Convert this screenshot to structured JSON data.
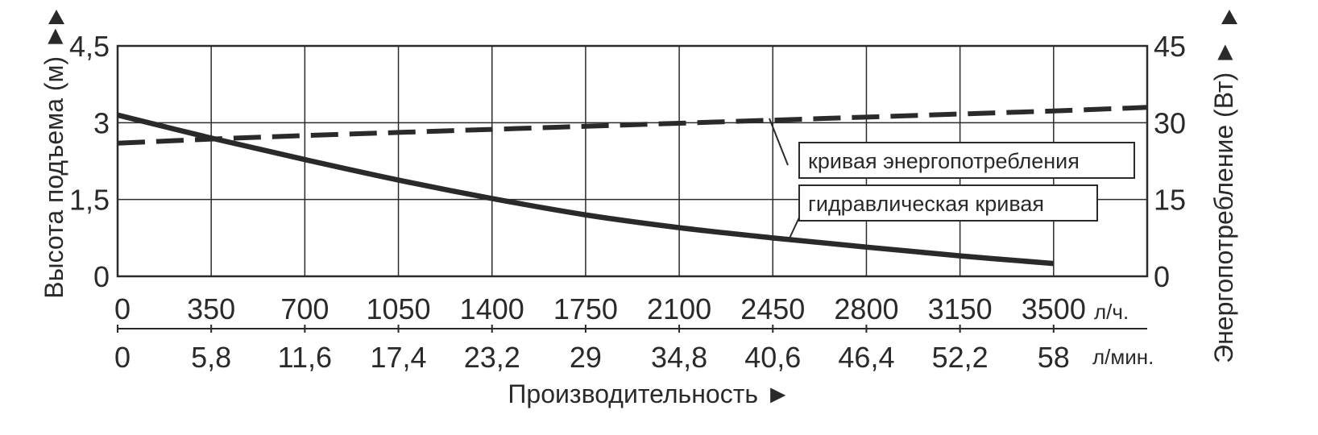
{
  "chart_data": {
    "type": "line",
    "x": [
      0,
      350,
      700,
      1050,
      1400,
      1750,
      2100,
      2450,
      2800,
      3150,
      3500
    ],
    "x_tick_labels": [
      "0",
      "350",
      "700",
      "1050",
      "1400",
      "1750",
      "2100",
      "2450",
      "2800",
      "3150",
      "3500"
    ],
    "x_unit": "л/ч.",
    "x2_tick_labels": [
      "0",
      "5,8",
      "11,6",
      "17,4",
      "23,2",
      "29",
      "34,8",
      "40,6",
      "46,4",
      "52,2",
      "58"
    ],
    "x2_unit": "л/мин.",
    "xlabel": "Производительность ►",
    "xlim": [
      0,
      3850
    ],
    "ylabel": "Высота подъема (м) ►",
    "ylim": [
      0,
      4.5
    ],
    "y_tick_labels": [
      "0",
      "1,5",
      "3",
      "4,5"
    ],
    "y_ticks": [
      0,
      1.5,
      3,
      4.5
    ],
    "y2label": "Энергопотребление (Вт) ►",
    "y2lim": [
      0,
      45
    ],
    "y2_tick_labels": [
      "0",
      "15",
      "30",
      "45"
    ],
    "y2_ticks": [
      0,
      15,
      30,
      45
    ],
    "grid": true,
    "series": [
      {
        "name": "гидравлическая кривая",
        "axis": "left",
        "style": "solid",
        "x": [
          0,
          350,
          700,
          1050,
          1400,
          1750,
          2100,
          2450,
          2800,
          3150,
          3500
        ],
        "values": [
          3.15,
          2.7,
          2.28,
          1.88,
          1.52,
          1.2,
          0.95,
          0.75,
          0.57,
          0.4,
          0.25
        ]
      },
      {
        "name": "кривая энергопотребления",
        "axis": "right",
        "style": "dashed",
        "x": [
          0,
          350,
          700,
          1050,
          1400,
          1750,
          2100,
          2450,
          2800,
          3150,
          3500,
          3850
        ],
        "values": [
          26,
          26.8,
          27.5,
          28.1,
          28.7,
          29.3,
          29.9,
          30.5,
          31.1,
          31.7,
          32.3,
          33
        ]
      }
    ],
    "annotations": [
      "кривая энергопотребления",
      "гидравлическая кривая"
    ]
  }
}
